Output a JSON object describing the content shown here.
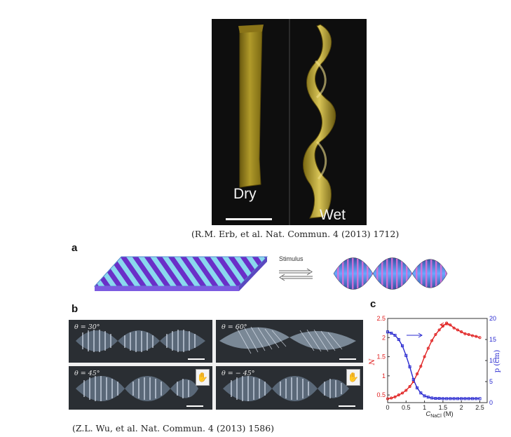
{
  "top_photo": {
    "label_left": "Dry",
    "label_right": "Wet",
    "citation": "(R.M. Erb, et al. Nat. Commun. 4 (2013) 1712)"
  },
  "panel_a": {
    "letter": "a",
    "stimulus_label": "Stimulus"
  },
  "panel_b": {
    "letter": "b",
    "thetas": [
      "θ = 30°",
      "θ = 60°",
      "θ = 45°",
      "θ = − 45°"
    ]
  },
  "panel_c": {
    "letter": "c"
  },
  "chart_data": {
    "type": "line",
    "xlabel": "C_NaCl (M)",
    "xlabel_main": "C",
    "xlabel_sub": "NaCl",
    "xlabel_unit": " (M)",
    "ylabel_left": "N",
    "ylabel_right": "p (cm)",
    "xlim": [
      0,
      2.7
    ],
    "ylim_left": [
      0.3,
      2.5
    ],
    "ylim_right": [
      0,
      20
    ],
    "x_ticks": [
      "0",
      "0.5",
      "1",
      "1.5",
      "2",
      "2.5"
    ],
    "y_left_ticks": [
      "0.5",
      "1",
      "1.5",
      "2",
      "2.5"
    ],
    "y_right_ticks": [
      "0",
      "5",
      "10",
      "15",
      "20"
    ],
    "series": [
      {
        "axis": "left",
        "color": "#e02020",
        "x": [
          0,
          0.1,
          0.2,
          0.3,
          0.4,
          0.5,
          0.6,
          0.7,
          0.8,
          0.9,
          1.0,
          1.1,
          1.2,
          1.3,
          1.4,
          1.5,
          1.6,
          1.7,
          1.8,
          1.9,
          2.0,
          2.1,
          2.2,
          2.3,
          2.4,
          2.5
        ],
        "values": [
          0.4,
          0.42,
          0.45,
          0.5,
          0.55,
          0.62,
          0.72,
          0.85,
          1.05,
          1.25,
          1.5,
          1.72,
          1.92,
          2.08,
          2.2,
          2.3,
          2.38,
          2.33,
          2.25,
          2.2,
          2.15,
          2.1,
          2.08,
          2.05,
          2.03,
          2.0
        ]
      },
      {
        "axis": "right",
        "color": "#2a2ad0",
        "x": [
          0,
          0.1,
          0.2,
          0.3,
          0.4,
          0.5,
          0.6,
          0.7,
          0.8,
          0.9,
          1.0,
          1.1,
          1.2,
          1.3,
          1.4,
          1.5,
          1.6,
          1.7,
          1.8,
          1.9,
          2.0,
          2.1,
          2.2,
          2.3,
          2.4,
          2.5
        ],
        "values": [
          16.8,
          16.5,
          16.0,
          15.0,
          13.5,
          11.2,
          8.5,
          5.5,
          3.5,
          2.3,
          1.6,
          1.3,
          1.1,
          1.0,
          1.0,
          0.95,
          0.95,
          0.95,
          0.95,
          0.95,
          0.95,
          0.95,
          0.95,
          0.95,
          0.95,
          0.95
        ]
      }
    ]
  }
}
